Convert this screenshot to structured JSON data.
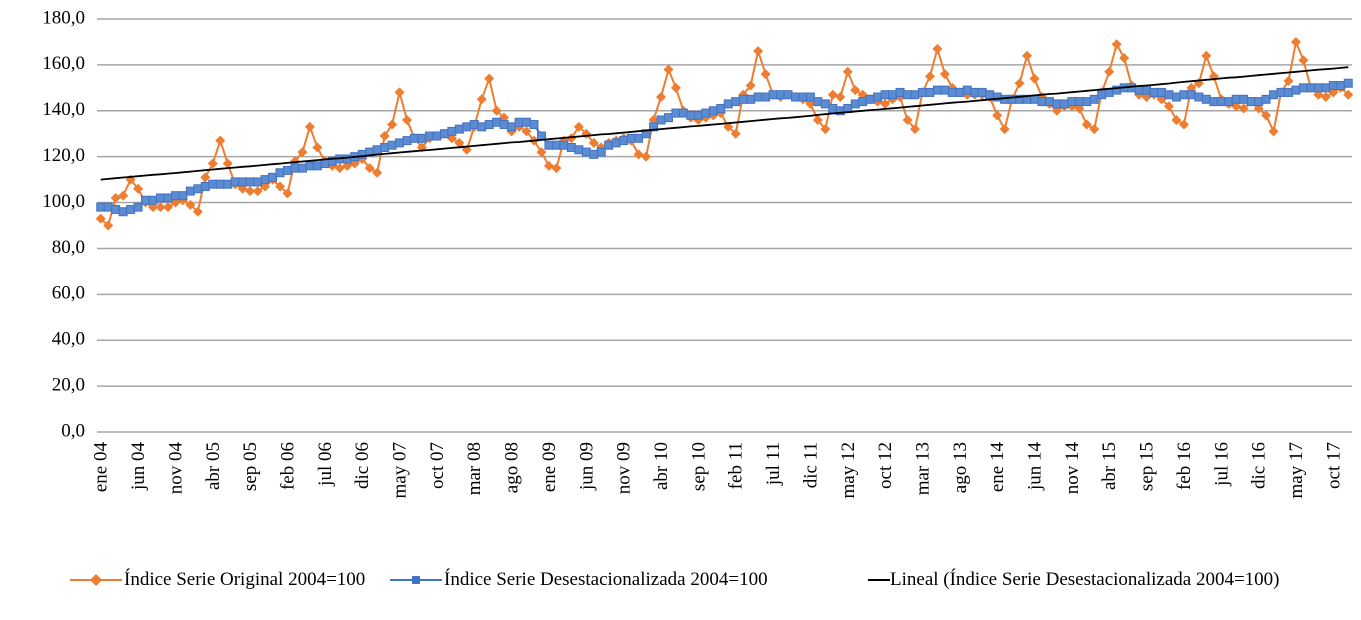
{
  "chart_data": {
    "type": "line",
    "categories": [
      "ene 04",
      null,
      null,
      null,
      null,
      "jun 04",
      null,
      null,
      null,
      null,
      "nov 04",
      null,
      null,
      null,
      null,
      "abr 05",
      null,
      null,
      null,
      null,
      "sep 05",
      null,
      null,
      null,
      null,
      "feb 06",
      null,
      null,
      null,
      null,
      "jul 06",
      null,
      null,
      null,
      null,
      "dic 06",
      null,
      null,
      null,
      null,
      "may 07",
      null,
      null,
      null,
      null,
      "oct 07",
      null,
      null,
      null,
      null,
      "mar 08",
      null,
      null,
      null,
      null,
      "ago 08",
      null,
      null,
      null,
      null,
      "ene 09",
      null,
      null,
      null,
      null,
      "jun 09",
      null,
      null,
      null,
      null,
      "nov 09",
      null,
      null,
      null,
      null,
      "abr 10",
      null,
      null,
      null,
      null,
      "sep 10",
      null,
      null,
      null,
      null,
      "feb 11",
      null,
      null,
      null,
      null,
      "jul 11",
      null,
      null,
      null,
      null,
      "dic 11",
      null,
      null,
      null,
      null,
      "may 12",
      null,
      null,
      null,
      null,
      "oct 12",
      null,
      null,
      null,
      null,
      "mar 13",
      null,
      null,
      null,
      null,
      "ago 13",
      null,
      null,
      null,
      null,
      "ene 14",
      null,
      null,
      null,
      null,
      "jun 14",
      null,
      null,
      null,
      null,
      "nov 14",
      null,
      null,
      null,
      null,
      "abr 15",
      null,
      null,
      null,
      null,
      "sep 15",
      null,
      null,
      null,
      null,
      "feb 16",
      null,
      null,
      null,
      null,
      "jul 16",
      null,
      null,
      null,
      null,
      "dic 16",
      null,
      null,
      null,
      null,
      "may 17",
      null,
      null,
      null,
      null,
      "oct 17",
      null,
      null
    ],
    "series": [
      {
        "name": "Índice Serie Original 2004=100",
        "color": "#ED7D31",
        "marker": "diamond",
        "values": [
          93,
          90,
          102,
          103,
          110,
          106,
          100,
          98,
          98,
          98,
          100,
          101,
          99,
          96,
          111,
          117,
          127,
          117,
          108,
          106,
          105,
          105,
          107,
          110,
          107,
          104,
          118,
          122,
          133,
          124,
          118,
          116,
          115,
          116,
          117,
          119,
          115,
          113,
          129,
          134,
          148,
          136,
          128,
          124,
          128,
          129,
          130,
          128,
          126,
          123,
          133,
          145,
          154,
          140,
          137,
          131,
          133,
          131,
          127,
          122,
          116,
          115,
          127,
          128,
          133,
          130,
          126,
          124,
          126,
          127,
          128,
          127,
          121,
          120,
          136,
          146,
          158,
          150,
          140,
          137,
          136,
          137,
          138,
          139,
          133,
          130,
          147,
          151,
          166,
          156,
          147,
          146,
          147,
          146,
          145,
          143,
          136,
          132,
          147,
          146,
          157,
          149,
          147,
          145,
          144,
          143,
          145,
          146,
          136,
          132,
          148,
          155,
          167,
          156,
          150,
          148,
          147,
          147,
          147,
          146,
          138,
          132,
          145,
          152,
          164,
          154,
          146,
          143,
          140,
          142,
          142,
          141,
          134,
          132,
          148,
          157,
          169,
          163,
          151,
          147,
          146,
          147,
          145,
          142,
          136,
          134,
          150,
          152,
          164,
          155,
          145,
          143,
          142,
          141,
          144,
          141,
          138,
          131,
          148,
          153,
          170,
          162,
          150,
          147,
          146,
          148,
          150,
          147
        ]
      },
      {
        "name": "Índice Serie Desestacionalizada 2004=100",
        "color": "#4472C4",
        "marker": "square",
        "values": [
          98,
          98,
          97,
          96,
          97,
          98,
          101,
          101,
          102,
          102,
          103,
          103,
          105,
          106,
          107,
          108,
          108,
          108,
          109,
          109,
          109,
          109,
          110,
          111,
          113,
          114,
          115,
          115,
          116,
          116,
          117,
          118,
          119,
          119,
          120,
          121,
          122,
          123,
          124,
          125,
          126,
          127,
          128,
          128,
          129,
          129,
          130,
          131,
          132,
          133,
          134,
          133,
          134,
          135,
          134,
          133,
          135,
          135,
          134,
          129,
          125,
          125,
          125,
          124,
          123,
          122,
          121,
          122,
          125,
          126,
          127,
          128,
          128,
          130,
          133,
          136,
          137,
          139,
          139,
          138,
          138,
          139,
          140,
          141,
          143,
          144,
          145,
          145,
          146,
          146,
          147,
          147,
          147,
          146,
          146,
          146,
          144,
          143,
          141,
          140,
          141,
          143,
          144,
          145,
          146,
          147,
          147,
          148,
          147,
          147,
          148,
          148,
          149,
          149,
          148,
          148,
          149,
          148,
          148,
          147,
          146,
          145,
          145,
          145,
          145,
          145,
          144,
          144,
          143,
          143,
          144,
          144,
          144,
          145,
          147,
          148,
          149,
          150,
          150,
          149,
          149,
          148,
          148,
          147,
          146,
          147,
          147,
          146,
          145,
          144,
          144,
          144,
          145,
          145,
          144,
          144,
          145,
          147,
          148,
          148,
          149,
          150,
          150,
          150,
          150,
          151,
          151,
          152
        ]
      },
      {
        "name": "Lineal (Índice Serie Desestacionalizada 2004=100)",
        "color": "#000000",
        "marker": "none",
        "values": [
          110.0,
          110.3,
          110.6,
          110.9,
          111.2,
          111.5,
          111.8,
          112.1,
          112.3,
          112.6,
          112.9,
          113.2,
          113.5,
          113.8,
          114.1,
          114.4,
          114.7,
          115.0,
          115.3,
          115.6,
          115.8,
          116.1,
          116.4,
          116.7,
          117.0,
          117.3,
          117.6,
          117.9,
          118.2,
          118.5,
          118.8,
          119.1,
          119.3,
          119.6,
          119.9,
          120.2,
          120.6,
          120.9,
          121.2,
          121.5,
          121.8,
          122.1,
          122.4,
          122.7,
          122.9,
          123.2,
          123.5,
          123.8,
          124.1,
          124.4,
          124.7,
          125.0,
          125.3,
          125.6,
          125.9,
          126.2,
          126.4,
          126.7,
          127.0,
          127.3,
          127.6,
          127.9,
          128.2,
          128.5,
          128.8,
          129.1,
          129.4,
          129.7,
          129.9,
          130.2,
          130.5,
          130.8,
          131.1,
          131.4,
          131.7,
          132.0,
          132.3,
          132.6,
          132.9,
          133.2,
          133.4,
          133.7,
          134.0,
          134.3,
          134.6,
          134.9,
          135.2,
          135.5,
          135.8,
          136.1,
          136.4,
          136.7,
          136.9,
          137.2,
          137.5,
          137.8,
          138.2,
          138.5,
          138.8,
          139.1,
          139.4,
          139.7,
          140.0,
          140.3,
          140.5,
          140.8,
          141.1,
          141.4,
          141.7,
          142.0,
          142.3,
          142.6,
          142.9,
          143.2,
          143.5,
          143.8,
          144.0,
          144.3,
          144.6,
          144.9,
          145.2,
          145.5,
          145.8,
          146.1,
          146.4,
          146.7,
          147.0,
          147.3,
          147.5,
          147.8,
          148.1,
          148.4,
          148.7,
          149.0,
          149.3,
          149.6,
          149.9,
          150.2,
          150.5,
          150.8,
          151.0,
          151.3,
          151.6,
          151.9,
          152.3,
          152.6,
          152.9,
          153.2,
          153.5,
          153.8,
          154.1,
          154.4,
          154.6,
          154.9,
          155.2,
          155.5,
          155.8,
          156.1,
          156.4,
          156.7,
          157.0,
          157.3,
          157.6,
          157.9,
          158.1,
          158.4,
          158.7,
          159.0
        ]
      }
    ],
    "ylim": [
      0,
      180
    ],
    "yticks": [
      {
        "value": 0,
        "label": "0,0"
      },
      {
        "value": 20,
        "label": "20,0"
      },
      {
        "value": 40,
        "label": "40,0"
      },
      {
        "value": 60,
        "label": "60,0"
      },
      {
        "value": 80,
        "label": "80,0"
      },
      {
        "value": 100,
        "label": "100,0"
      },
      {
        "value": 120,
        "label": "120,0"
      },
      {
        "value": 140,
        "label": "140,0"
      },
      {
        "value": 160,
        "label": "160,0"
      },
      {
        "value": 180,
        "label": "180,0"
      }
    ],
    "grid": true,
    "legend": "bottom"
  }
}
